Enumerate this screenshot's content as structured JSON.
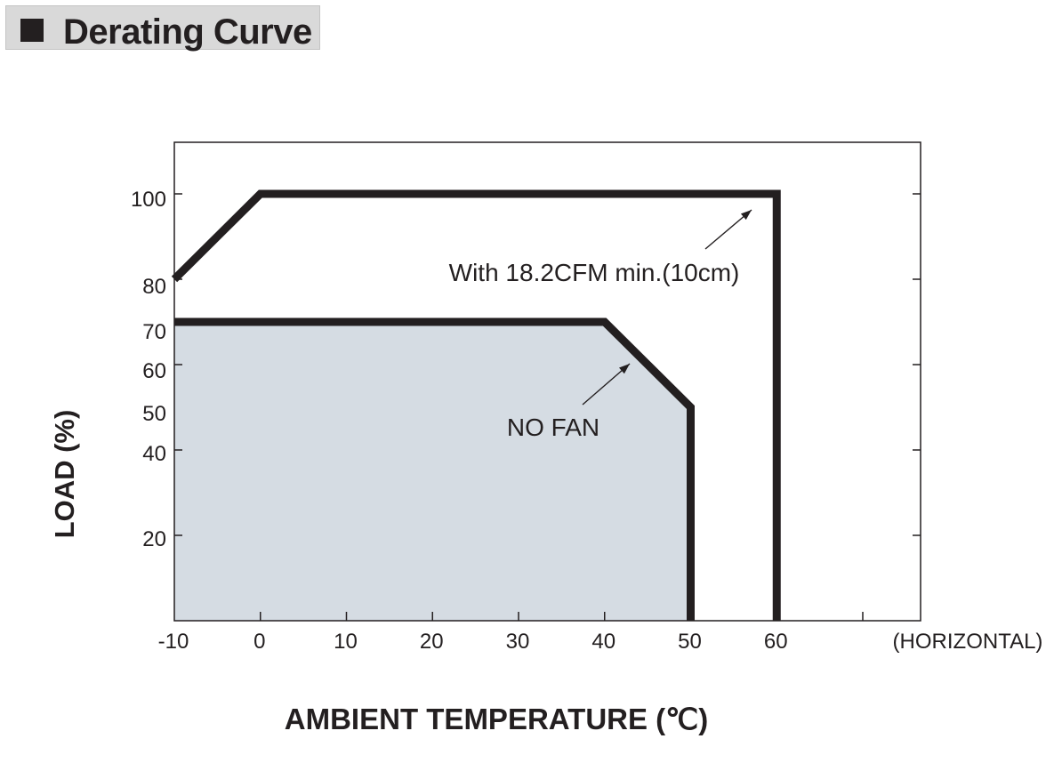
{
  "header": {
    "title": "Derating Curve"
  },
  "chart_data": {
    "type": "line",
    "title": "Derating Curve",
    "xlabel": "AMBIENT TEMPERATURE (℃)",
    "ylabel": "LOAD (%)",
    "x_note": "(HORIZONTAL)",
    "xlim": [
      -10,
      77
    ],
    "ylim": [
      0,
      112
    ],
    "x_ticks": [
      -10,
      0,
      10,
      20,
      30,
      40,
      50,
      60
    ],
    "y_ticks": [
      20,
      40,
      50,
      60,
      70,
      80,
      100
    ],
    "grid": false,
    "series": [
      {
        "name": "With 18.2CFM min.(10cm)",
        "points": [
          [
            -10,
            80
          ],
          [
            0,
            100
          ],
          [
            60,
            100
          ],
          [
            60,
            0
          ]
        ],
        "filled": false
      },
      {
        "name": "NO FAN",
        "points": [
          [
            -10,
            70
          ],
          [
            40,
            70
          ],
          [
            50,
            50
          ],
          [
            50,
            0
          ]
        ],
        "filled": true
      }
    ],
    "annotations": [
      {
        "text": "With 18.2CFM min.(10cm)",
        "series": 0
      },
      {
        "text": "NO FAN",
        "series": 1
      }
    ],
    "colors": {
      "line": "#231f20",
      "fill": "#d5dce3",
      "axis": "#231f20"
    }
  }
}
